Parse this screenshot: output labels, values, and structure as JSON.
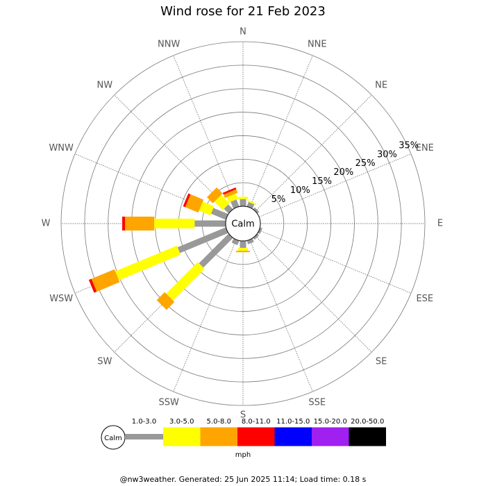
{
  "chart_data": {
    "type": "windrose",
    "title": "Wind rose for 21 Feb 2023",
    "calm_label": "Calm",
    "unit": "mph",
    "footer": "@nw3weather. Generated: 25 Jun 2025 11:14; Load time: 0.18 s",
    "categories": [
      "N",
      "NNE",
      "NE",
      "ENE",
      "E",
      "ESE",
      "SE",
      "SSE",
      "S",
      "SSW",
      "SW",
      "WSW",
      "W",
      "WNW",
      "NW",
      "NNW"
    ],
    "ylim": [
      0,
      35
    ],
    "yticks": [
      {
        "value": 5,
        "label": "5%"
      },
      {
        "value": 10,
        "label": "10%"
      },
      {
        "value": 15,
        "label": "15%"
      },
      {
        "value": 20,
        "label": "20%"
      },
      {
        "value": 25,
        "label": "25%"
      },
      {
        "value": 30,
        "label": "30%"
      },
      {
        "value": 35,
        "label": "35%"
      }
    ],
    "grid": true,
    "series": [
      {
        "name": "1.0-3.0",
        "color": "#999999",
        "values": [
          1.5,
          1.0,
          0.5,
          0,
          0,
          0.5,
          0.5,
          0.8,
          1.5,
          1.0,
          8.9,
          11.1,
          6.6,
          3.4,
          1.4,
          1.6
        ]
      },
      {
        "name": "3.0-5.0",
        "color": "#ffff00",
        "values": [
          0.5,
          0.3,
          0,
          0,
          0,
          0,
          0,
          0,
          0.6,
          0,
          9.5,
          14.2,
          8.6,
          2.6,
          2.5,
          1.2
        ]
      },
      {
        "name": "5.0-8.0",
        "color": "#ffa500",
        "values": [
          0,
          0,
          0,
          0,
          0,
          0,
          0,
          0,
          0.3,
          0,
          2.4,
          5.3,
          6.2,
          3.0,
          1.8,
          0.8
        ]
      },
      {
        "name": "8.0-11.0",
        "color": "#ff0000",
        "values": [
          0,
          0,
          0,
          0,
          0,
          0,
          0,
          0,
          0,
          0,
          0,
          0.6,
          0.6,
          0.5,
          0,
          0.4
        ]
      },
      {
        "name": "11.0-15.0",
        "color": "#0000ff",
        "values": [
          0,
          0,
          0,
          0,
          0,
          0,
          0,
          0,
          0,
          0,
          0,
          0,
          0,
          0,
          0,
          0
        ]
      },
      {
        "name": "15.0-20.0",
        "color": "#a020f0",
        "values": [
          0,
          0,
          0,
          0,
          0,
          0,
          0,
          0,
          0,
          0,
          0,
          0,
          0,
          0,
          0,
          0
        ]
      },
      {
        "name": "20.0-50.0",
        "color": "#000000",
        "values": [
          0,
          0,
          0,
          0,
          0,
          0,
          0,
          0,
          0,
          0,
          0,
          0,
          0,
          0,
          0,
          0
        ]
      }
    ]
  }
}
